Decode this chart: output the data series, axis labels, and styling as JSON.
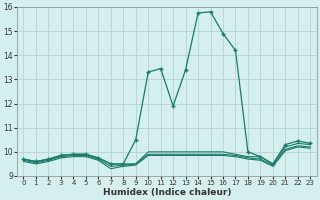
{
  "xlabel": "Humidex (Indice chaleur)",
  "ylabel": "",
  "bg_color": "#d5eeee",
  "grid_color": "#b8d8d8",
  "line_color": "#1a7a6a",
  "xlim": [
    -0.5,
    23.5
  ],
  "ylim": [
    9,
    16
  ],
  "yticks": [
    9,
    10,
    11,
    12,
    13,
    14,
    15,
    16
  ],
  "xticks": [
    0,
    1,
    2,
    3,
    4,
    5,
    6,
    7,
    8,
    9,
    10,
    11,
    12,
    13,
    14,
    15,
    16,
    17,
    18,
    19,
    20,
    21,
    22,
    23
  ],
  "series": [
    {
      "x": [
        0,
        1,
        2,
        3,
        4,
        5,
        6,
        7,
        8,
        9,
        10,
        11,
        12,
        13,
        14,
        15,
        16,
        17,
        18,
        19,
        20,
        21,
        22,
        23
      ],
      "y": [
        9.7,
        9.6,
        9.7,
        9.85,
        9.9,
        9.9,
        9.75,
        9.5,
        9.5,
        10.5,
        13.3,
        13.45,
        11.9,
        13.4,
        15.75,
        15.8,
        14.9,
        14.2,
        10.0,
        9.8,
        9.5,
        10.3,
        10.45,
        10.35
      ],
      "marker": true
    },
    {
      "x": [
        0,
        1,
        2,
        3,
        4,
        5,
        6,
        7,
        8,
        9,
        10,
        11,
        12,
        13,
        14,
        15,
        16,
        17,
        18,
        19,
        20,
        21,
        22,
        23
      ],
      "y": [
        9.7,
        9.6,
        9.7,
        9.85,
        9.9,
        9.9,
        9.75,
        9.5,
        9.5,
        9.5,
        10.0,
        10.0,
        10.0,
        10.0,
        10.0,
        10.0,
        10.0,
        9.9,
        9.8,
        9.8,
        9.5,
        10.2,
        10.35,
        10.3
      ],
      "marker": false
    },
    {
      "x": [
        0,
        1,
        2,
        3,
        4,
        5,
        6,
        7,
        8,
        9,
        10,
        11,
        12,
        13,
        14,
        15,
        16,
        17,
        18,
        19,
        20,
        21,
        22,
        23
      ],
      "y": [
        9.65,
        9.55,
        9.65,
        9.8,
        9.85,
        9.85,
        9.7,
        9.4,
        9.45,
        9.5,
        9.9,
        9.9,
        9.9,
        9.9,
        9.9,
        9.9,
        9.9,
        9.85,
        9.75,
        9.7,
        9.45,
        10.1,
        10.25,
        10.2
      ],
      "marker": false
    },
    {
      "x": [
        0,
        1,
        2,
        3,
        4,
        5,
        6,
        7,
        8,
        9,
        10,
        11,
        12,
        13,
        14,
        15,
        16,
        17,
        18,
        19,
        20,
        21,
        22,
        23
      ],
      "y": [
        9.6,
        9.5,
        9.6,
        9.75,
        9.8,
        9.8,
        9.65,
        9.3,
        9.4,
        9.45,
        9.85,
        9.85,
        9.85,
        9.85,
        9.85,
        9.85,
        9.85,
        9.8,
        9.7,
        9.65,
        9.4,
        10.05,
        10.2,
        10.15
      ],
      "marker": false
    }
  ]
}
